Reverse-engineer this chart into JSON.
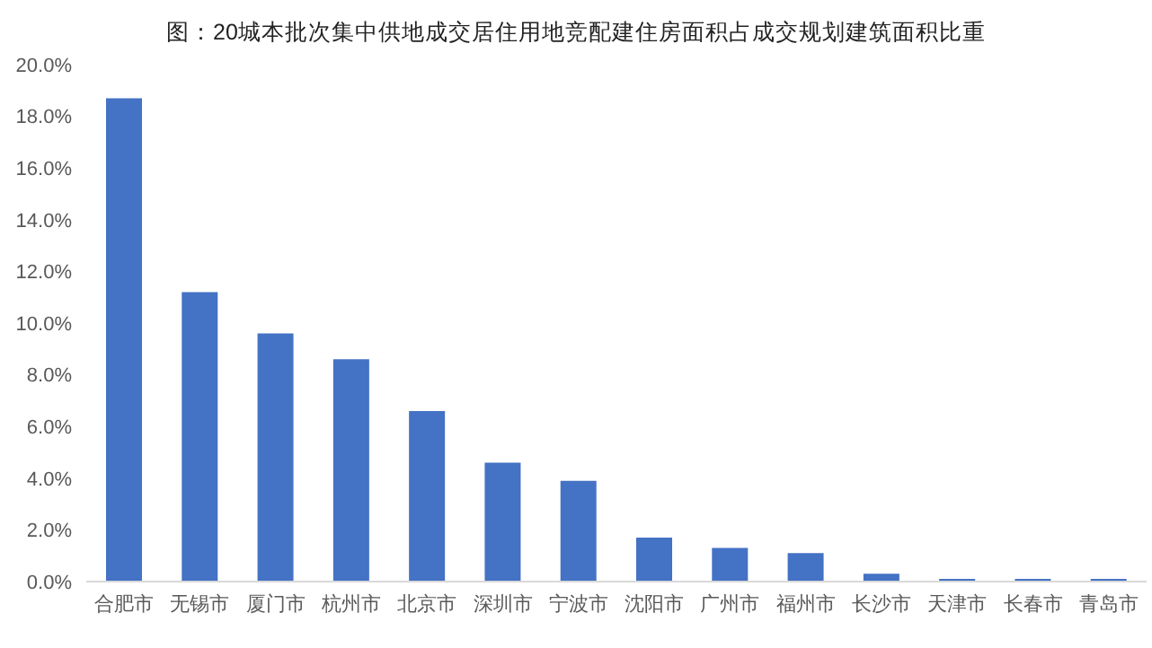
{
  "chart_data": {
    "type": "bar",
    "title": "图：20城本批次集中供地成交居住用地竞配建住房面积占成交规划建筑面积比重",
    "categories": [
      "合肥市",
      "无锡市",
      "厦门市",
      "杭州市",
      "北京市",
      "深圳市",
      "宁波市",
      "沈阳市",
      "广州市",
      "福州市",
      "长沙市",
      "天津市",
      "长春市",
      "青岛市"
    ],
    "values": [
      18.7,
      11.2,
      9.6,
      8.6,
      6.6,
      4.6,
      3.9,
      1.7,
      1.3,
      1.1,
      0.3,
      0.1,
      0.1,
      0.1
    ],
    "color": "#4472c4",
    "ylim": [
      0,
      20
    ],
    "yticks": [
      {
        "value": 0,
        "label": "0.0%"
      },
      {
        "value": 2,
        "label": "2.0%"
      },
      {
        "value": 4,
        "label": "4.0%"
      },
      {
        "value": 6,
        "label": "6.0%"
      },
      {
        "value": 8,
        "label": "8.0%"
      },
      {
        "value": 10,
        "label": "10.0%"
      },
      {
        "value": 12,
        "label": "12.0%"
      },
      {
        "value": 14,
        "label": "14.0%"
      },
      {
        "value": 16,
        "label": "16.0%"
      },
      {
        "value": 18,
        "label": "18.0%"
      },
      {
        "value": 20,
        "label": "20.0%"
      }
    ],
    "grid": false,
    "legend": false
  }
}
